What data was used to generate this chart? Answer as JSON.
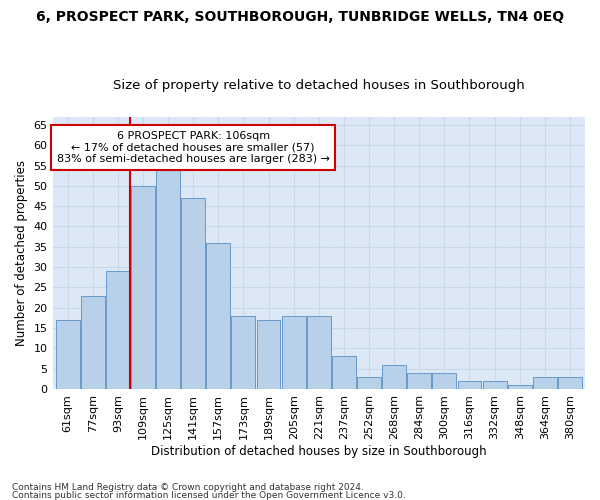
{
  "title": "6, PROSPECT PARK, SOUTHBOROUGH, TUNBRIDGE WELLS, TN4 0EQ",
  "subtitle": "Size of property relative to detached houses in Southborough",
  "xlabel": "Distribution of detached houses by size in Southborough",
  "ylabel": "Number of detached properties",
  "categories": [
    "61sqm",
    "77sqm",
    "93sqm",
    "109sqm",
    "125sqm",
    "141sqm",
    "157sqm",
    "173sqm",
    "189sqm",
    "205sqm",
    "221sqm",
    "237sqm",
    "252sqm",
    "268sqm",
    "284sqm",
    "300sqm",
    "316sqm",
    "332sqm",
    "348sqm",
    "364sqm",
    "380sqm"
  ],
  "values": [
    17,
    23,
    29,
    50,
    54,
    47,
    36,
    18,
    17,
    18,
    18,
    8,
    3,
    6,
    4,
    4,
    2,
    2,
    1,
    3,
    3
  ],
  "bar_color": "#b8d0e8",
  "bar_edge_color": "#6699cc",
  "grid_color": "#c8d8e8",
  "background_color": "#dce8f5",
  "vline_color": "#cc0000",
  "annotation_text": "6 PROSPECT PARK: 106sqm\n← 17% of detached houses are smaller (57)\n83% of semi-detached houses are larger (283) →",
  "annotation_box_color": "#ffffff",
  "annotation_box_edge": "#cc0000",
  "ylim": [
    0,
    67
  ],
  "yticks": [
    0,
    5,
    10,
    15,
    20,
    25,
    30,
    35,
    40,
    45,
    50,
    55,
    60,
    65
  ],
  "footnote1": "Contains HM Land Registry data © Crown copyright and database right 2024.",
  "footnote2": "Contains public sector information licensed under the Open Government Licence v3.0.",
  "title_fontsize": 10,
  "subtitle_fontsize": 9.5,
  "label_fontsize": 8.5,
  "tick_fontsize": 8,
  "annot_fontsize": 8
}
